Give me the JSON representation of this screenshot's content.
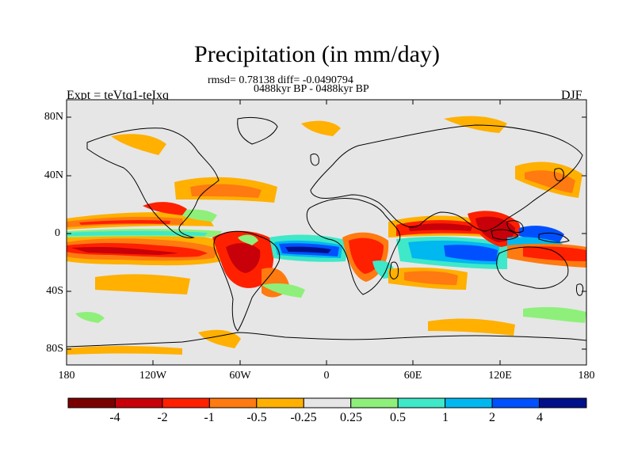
{
  "header": {
    "title": "Precipitation (in mm/day)",
    "stats": "rmsd= 0.78138 diff= -0.0490794",
    "period": "0488kyr BP - 0488kyr BP",
    "experiment": "Expt = teVtq1-teIxq",
    "season": "DJF"
  },
  "axes": {
    "y_ticks": [
      "80N",
      "40N",
      "0",
      "40S",
      "80S"
    ],
    "x_ticks": [
      "180",
      "120W",
      "60W",
      "0",
      "60E",
      "120E",
      "180"
    ]
  },
  "colorbar": {
    "labels": [
      "-4",
      "-2",
      "-1",
      "-0.5",
      "-0.25",
      "0.25",
      "0.5",
      "1",
      "2",
      "4"
    ],
    "colors": [
      "#7a0000",
      "#c8000a",
      "#ff2000",
      "#ff7a10",
      "#ffb000",
      "#e6e6e6",
      "#8ef07a",
      "#3ee8c8",
      "#00b8f0",
      "#0050ff",
      "#00108a"
    ]
  },
  "palette": {
    "background": "#e6e6e6",
    "coast": "#000000"
  }
}
